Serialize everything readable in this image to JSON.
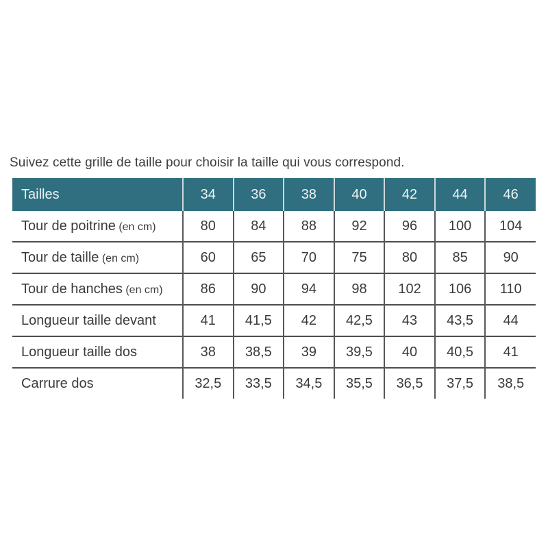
{
  "intro_text": "Suivez cette grille de taille pour choisir la taille qui vous correspond.",
  "size_table": {
    "header": {
      "label": "Tailles",
      "sizes": [
        "34",
        "36",
        "38",
        "40",
        "42",
        "44",
        "46"
      ]
    },
    "rows": [
      {
        "label": "Tour de poitrine",
        "unit": "(en cm)",
        "values": [
          "80",
          "84",
          "88",
          "92",
          "96",
          "100",
          "104"
        ]
      },
      {
        "label": "Tour de taille",
        "unit": "(en cm)",
        "values": [
          "60",
          "65",
          "70",
          "75",
          "80",
          "85",
          "90"
        ]
      },
      {
        "label": "Tour de hanches",
        "unit": "(en cm)",
        "values": [
          "86",
          "90",
          "94",
          "98",
          "102",
          "106",
          "110"
        ]
      },
      {
        "label": "Longueur taille devant",
        "unit": "",
        "values": [
          "41",
          "41,5",
          "42",
          "42,5",
          "43",
          "43,5",
          "44"
        ]
      },
      {
        "label": "Longueur taille dos",
        "unit": "",
        "values": [
          "38",
          "38,5",
          "39",
          "39,5",
          "40",
          "40,5",
          "41"
        ]
      },
      {
        "label": "Carrure dos",
        "unit": "",
        "values": [
          "32,5",
          "33,5",
          "34,5",
          "35,5",
          "36,5",
          "37,5",
          "38,5"
        ]
      }
    ]
  },
  "colors": {
    "header_bg": "#2f6f7f",
    "header_text": "#ecf3f5",
    "header_divider": "#cdd9dc",
    "body_text": "#3b3b3b",
    "grid_vertical": "#55575a",
    "grid_horizontal": "#4d4d4d",
    "page_bg": "#ffffff"
  }
}
